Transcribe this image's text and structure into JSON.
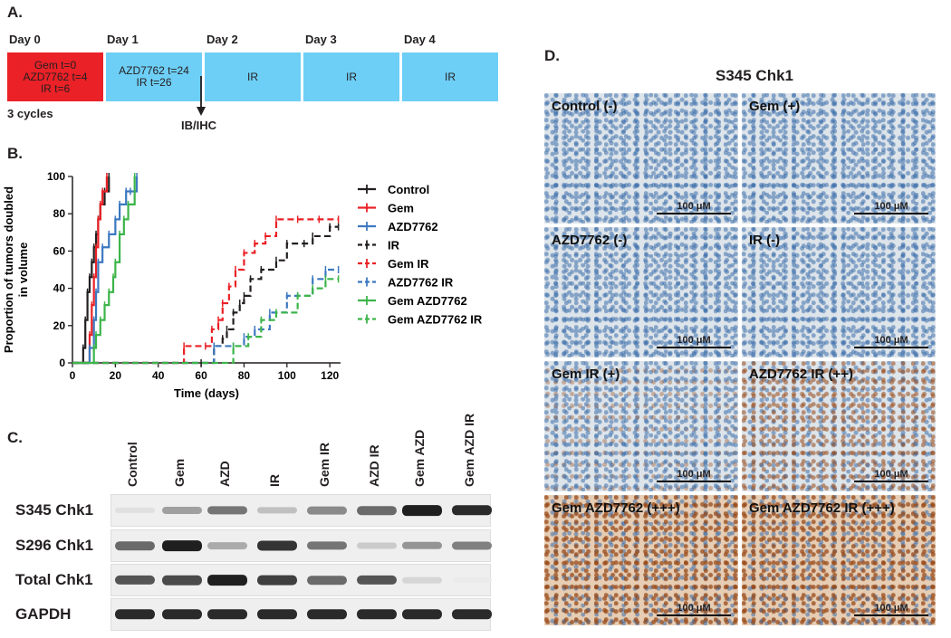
{
  "panelA": {
    "letter": "A.",
    "days": [
      "Day 0",
      "Day 1",
      "Day 2",
      "Day 3",
      "Day 4"
    ],
    "boxes": [
      "Gem t=0\nAZD7762 t=4\nIR t=6",
      "AZD7762 t=24\nIR t=26",
      "IR",
      "IR",
      "IR"
    ],
    "cycles": "3 cycles",
    "arrow_label": "IB/IHC",
    "colors": {
      "red": "#ea2127",
      "blue": "#6ecff6"
    }
  },
  "panelB": {
    "letter": "B."
  },
  "chart_data": {
    "type": "line",
    "title": "",
    "xlabel": "Time (days)",
    "ylabel": "Proportion of tumors doubled in volume",
    "xlim": [
      0,
      125
    ],
    "ylim": [
      0,
      100
    ],
    "xticks": [
      0,
      20,
      40,
      60,
      80,
      100,
      120
    ],
    "yticks": [
      0,
      20,
      40,
      60,
      80,
      100
    ],
    "legend_position": "right",
    "series": [
      {
        "name": "Control",
        "color": "#231f20",
        "dash": false,
        "x": [
          0,
          5,
          6,
          7,
          8,
          9,
          10,
          11,
          12,
          13,
          15,
          17
        ],
        "y": [
          0,
          8,
          23,
          38,
          46,
          54,
          62,
          69,
          77,
          85,
          92,
          100
        ]
      },
      {
        "name": "Gem",
        "color": "#ea2127",
        "dash": false,
        "x": [
          0,
          8,
          9,
          10,
          11,
          12,
          13,
          14,
          16
        ],
        "y": [
          0,
          15,
          31,
          46,
          62,
          77,
          85,
          92,
          100
        ]
      },
      {
        "name": "AZD7762",
        "color": "#3c78c0",
        "dash": false,
        "x": [
          0,
          8,
          10,
          11,
          12,
          14,
          17,
          20,
          22,
          25,
          27,
          30
        ],
        "y": [
          0,
          8,
          23,
          38,
          54,
          62,
          69,
          77,
          85,
          92,
          92,
          100
        ]
      },
      {
        "name": "IR",
        "color": "#231f20",
        "dash": true,
        "x": [
          0,
          60,
          66,
          70,
          72,
          75,
          78,
          80,
          83,
          88,
          95,
          100,
          108,
          112,
          120,
          124
        ],
        "y": [
          0,
          0,
          9,
          13,
          18,
          27,
          32,
          36,
          45,
          50,
          55,
          64,
          64,
          68,
          73,
          73
        ]
      },
      {
        "name": "Gem IR",
        "color": "#ea2127",
        "dash": true,
        "x": [
          0,
          52,
          62,
          65,
          68,
          70,
          73,
          76,
          80,
          85,
          90,
          95,
          105,
          115,
          124
        ],
        "y": [
          0,
          9,
          9,
          18,
          23,
          32,
          41,
          50,
          59,
          64,
          68,
          77,
          77,
          77,
          77
        ]
      },
      {
        "name": "AZD7762 IR",
        "color": "#3c78c0",
        "dash": true,
        "x": [
          0,
          66,
          75,
          80,
          85,
          92,
          100,
          105,
          112,
          118,
          124
        ],
        "y": [
          0,
          9,
          9,
          14,
          18,
          27,
          36,
          36,
          45,
          50,
          50
        ]
      },
      {
        "name": "Gem AZD7762",
        "color": "#3cb54a",
        "dash": false,
        "x": [
          0,
          10,
          11,
          13,
          15,
          17,
          19,
          20,
          22,
          24,
          26,
          29
        ],
        "y": [
          0,
          8,
          15,
          23,
          31,
          38,
          46,
          54,
          69,
          77,
          85,
          100
        ]
      },
      {
        "name": "Gem AZD7762 IR",
        "color": "#3cb54a",
        "dash": true,
        "x": [
          0,
          75,
          82,
          88,
          95,
          105,
          112,
          118,
          124
        ],
        "y": [
          0,
          9,
          14,
          23,
          27,
          36,
          40,
          45,
          45
        ]
      }
    ]
  },
  "panelC": {
    "letter": "C.",
    "columns": [
      "Control",
      "Gem",
      "AZD",
      "IR",
      "Gem IR",
      "AZD IR",
      "Gem AZD",
      "Gem AZD IR"
    ],
    "rows": [
      "S345 Chk1",
      "S296 Chk1",
      "Total Chk1",
      "GAPDH"
    ],
    "band_intensity": [
      [
        0.05,
        0.35,
        0.55,
        0.2,
        0.45,
        0.6,
        0.95,
        0.9
      ],
      [
        0.6,
        0.95,
        0.3,
        0.85,
        0.55,
        0.15,
        0.4,
        0.5
      ],
      [
        0.7,
        0.75,
        0.95,
        0.8,
        0.6,
        0.7,
        0.1,
        0.0
      ],
      [
        0.9,
        0.9,
        0.9,
        0.9,
        0.9,
        0.9,
        0.9,
        0.9
      ]
    ]
  },
  "panelD": {
    "letter": "D.",
    "title": "S345 Chk1",
    "panels": [
      {
        "label": "Control (-)",
        "stain": 0.05
      },
      {
        "label": "Gem (+)",
        "stain": 0.15
      },
      {
        "label": "AZD7762 (-)",
        "stain": 0.02
      },
      {
        "label": "IR (-)",
        "stain": 0.02
      },
      {
        "label": "Gem IR (+)",
        "stain": 0.2
      },
      {
        "label": "AZD7762 IR (++)",
        "stain": 0.5
      },
      {
        "label": "Gem AZD7762 (+++)",
        "stain": 0.8
      },
      {
        "label": "Gem AZD7762 IR (+++)",
        "stain": 0.8
      }
    ],
    "scale_label": "100 μM"
  }
}
